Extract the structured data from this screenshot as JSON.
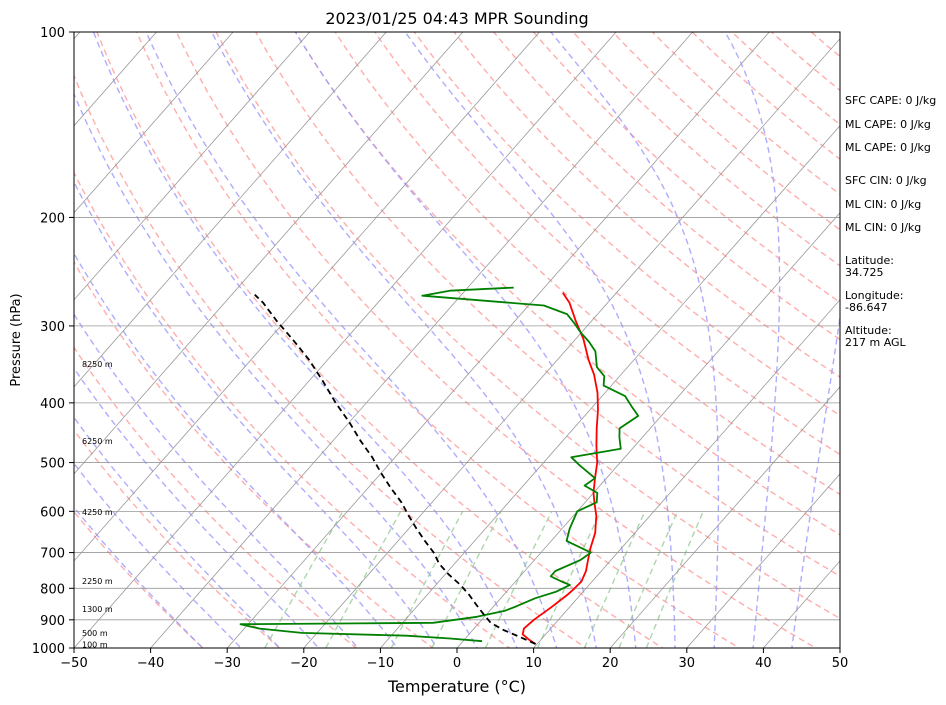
{
  "chart_data": {
    "type": "line",
    "title": "2023/01/25 04:43 MPR Sounding",
    "xlabel": "Temperature (°C)",
    "ylabel": "Pressure (hPa)",
    "xlim": [
      -50,
      50
    ],
    "ylim": [
      1000,
      100
    ],
    "y_scale": "log",
    "grid": true,
    "x_ticks": [
      -50,
      -40,
      -30,
      -20,
      -10,
      0,
      10,
      20,
      30,
      40,
      50
    ],
    "y_ticks": [
      100,
      200,
      300,
      400,
      500,
      600,
      700,
      800,
      900,
      1000
    ],
    "skew": true,
    "series": [
      {
        "key": "temperature",
        "color": "#ff0000",
        "points": [
          [
            9.8,
            985
          ],
          [
            8.5,
            970
          ],
          [
            7,
            950
          ],
          [
            6.5,
            930
          ],
          [
            6.8,
            900
          ],
          [
            7.6,
            860
          ],
          [
            8.3,
            820
          ],
          [
            8.5,
            800
          ],
          [
            8.6,
            780
          ],
          [
            8,
            750
          ],
          [
            7,
            720
          ],
          [
            6,
            690
          ],
          [
            4.8,
            650
          ],
          [
            3,
            610
          ],
          [
            1.2,
            580
          ],
          [
            0,
            560
          ],
          [
            -1.5,
            530
          ],
          [
            -3,
            500
          ],
          [
            -5,
            470
          ],
          [
            -7,
            440
          ],
          [
            -9,
            410
          ],
          [
            -11,
            385
          ],
          [
            -13.5,
            360
          ],
          [
            -16,
            340
          ],
          [
            -19,
            315
          ],
          [
            -22,
            295
          ],
          [
            -25,
            275
          ],
          [
            -27,
            265
          ]
        ]
      },
      {
        "key": "dewpoint",
        "color": "#008000",
        "points": [
          [
            2.5,
            975
          ],
          [
            -2,
            965
          ],
          [
            -8,
            955
          ],
          [
            -22,
            945
          ],
          [
            -28,
            930
          ],
          [
            -31,
            915
          ],
          [
            -16,
            912
          ],
          [
            -6,
            910
          ],
          [
            -1,
            890
          ],
          [
            2,
            870
          ],
          [
            3,
            855
          ],
          [
            4.5,
            830
          ],
          [
            6.5,
            810
          ],
          [
            7.5,
            790
          ],
          [
            6,
            780
          ],
          [
            4,
            765
          ],
          [
            4,
            750
          ],
          [
            6,
            720
          ],
          [
            6.5,
            700
          ],
          [
            5,
            690
          ],
          [
            2,
            670
          ],
          [
            1,
            640
          ],
          [
            0.5,
            620
          ],
          [
            0,
            600
          ],
          [
            1.5,
            580
          ],
          [
            0.5,
            560
          ],
          [
            -2,
            545
          ],
          [
            -1.5,
            530
          ],
          [
            -5,
            505
          ],
          [
            -7,
            490
          ],
          [
            -1.5,
            475
          ],
          [
            -3,
            455
          ],
          [
            -4,
            440
          ],
          [
            -3,
            420
          ],
          [
            -5,
            405
          ],
          [
            -7,
            390
          ],
          [
            -11,
            375
          ],
          [
            -12,
            362
          ],
          [
            -14,
            350
          ],
          [
            -16,
            330
          ],
          [
            -18,
            318
          ],
          [
            -20,
            308
          ],
          [
            -22,
            297
          ],
          [
            -24,
            287
          ],
          [
            -28,
            278
          ],
          [
            -45,
            268
          ],
          [
            -42,
            263
          ],
          [
            -34,
            260
          ]
        ]
      },
      {
        "key": "parcel",
        "color": "#000000",
        "style": "dashed",
        "points": [
          [
            9.8,
            985
          ],
          [
            7,
            960
          ],
          [
            4,
            935
          ],
          [
            1.5,
            910
          ],
          [
            -0.5,
            880
          ],
          [
            -2.5,
            850
          ],
          [
            -4.5,
            820
          ],
          [
            -6.8,
            790
          ],
          [
            -9.5,
            760
          ],
          [
            -12,
            730
          ],
          [
            -14,
            700
          ],
          [
            -16.5,
            670
          ],
          [
            -19,
            640
          ],
          [
            -21.5,
            610
          ],
          [
            -24,
            580
          ],
          [
            -27,
            550
          ],
          [
            -30,
            520
          ],
          [
            -33,
            490
          ],
          [
            -36.5,
            460
          ],
          [
            -40,
            430
          ],
          [
            -44,
            400
          ],
          [
            -48,
            370
          ],
          [
            -52.5,
            340
          ],
          [
            -57,
            315
          ],
          [
            -61,
            295
          ],
          [
            -65,
            275
          ],
          [
            -67,
            267
          ]
        ]
      }
    ],
    "dry_adiabat_color": "#ff9999",
    "moist_adiabat_color": "#9999ff",
    "mixing_ratio_color": "#99cc99",
    "isotherm_color": "#999999",
    "height_labels": [
      {
        "label": "100 m",
        "p": 987
      },
      {
        "label": "500 m",
        "p": 946
      },
      {
        "label": "1300 m",
        "p": 865
      },
      {
        "label": "2250 m",
        "p": 778
      },
      {
        "label": "4250 m",
        "p": 601
      },
      {
        "label": "6250 m",
        "p": 461
      },
      {
        "label": "8250 m",
        "p": 346
      }
    ],
    "annotations": [
      "SFC CAPE: 0 J/kg",
      "ML CAPE: 0 J/kg",
      "ML CAPE: 0 J/kg",
      "SFC CIN: 0 J/kg",
      "ML CIN: 0 J/kg",
      "ML CIN: 0 J/kg",
      "Latitude:",
      "34.725",
      "Longitude:",
      "-86.647",
      "Altitude:",
      "217 m AGL"
    ]
  }
}
